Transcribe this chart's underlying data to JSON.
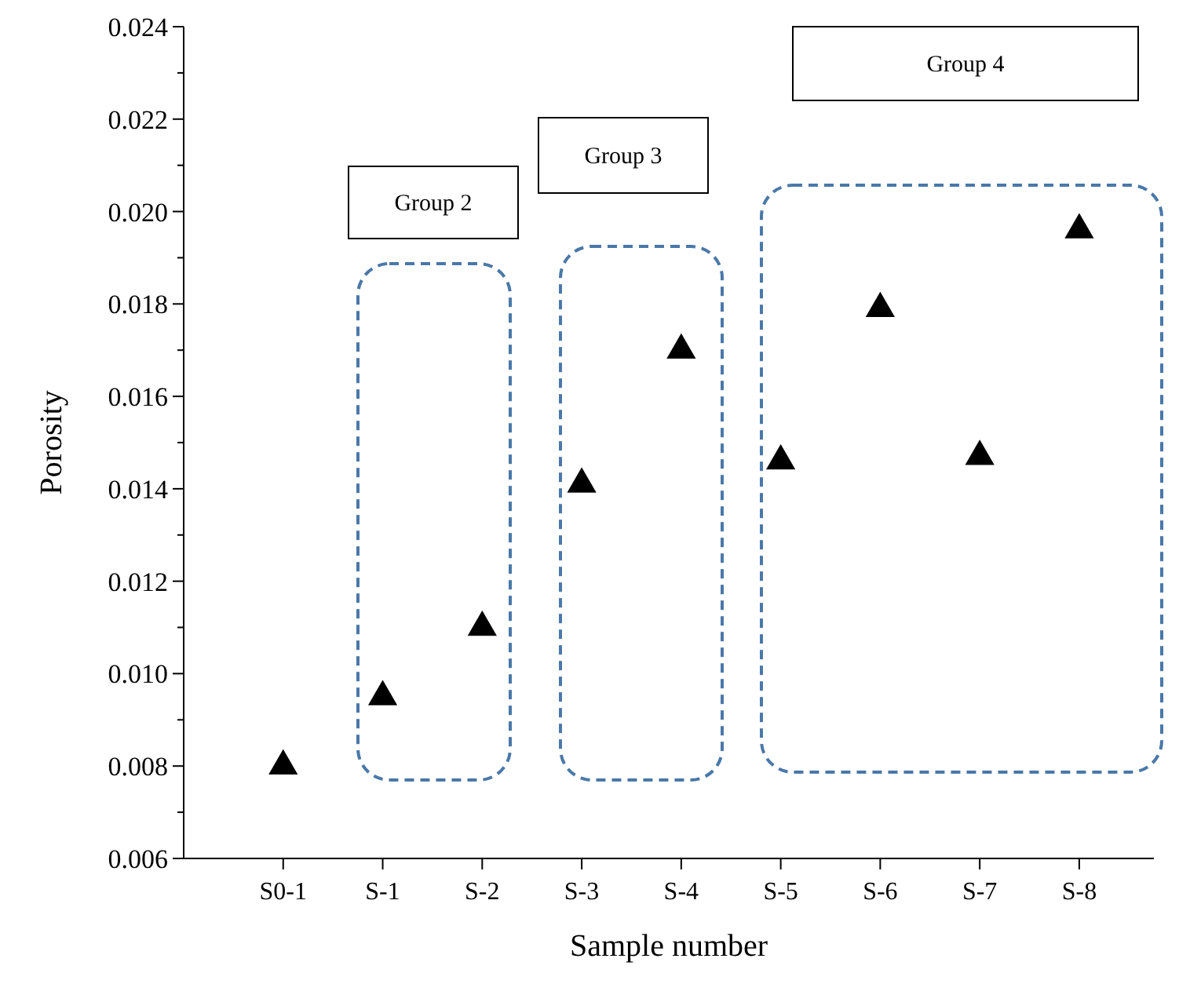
{
  "chart_data": {
    "type": "scatter",
    "xlabel": "Sample number",
    "ylabel": "Porosity",
    "categories": [
      "S0-1",
      "S-1",
      "S-2",
      "S-3",
      "S-4",
      "S-5",
      "S-6",
      "S-7",
      "S-8"
    ],
    "values": [
      0.008,
      0.0095,
      0.011,
      0.0141,
      0.017,
      0.0146,
      0.0179,
      0.0147,
      0.0196
    ],
    "color": "#000000",
    "marker": "triangle",
    "grid": false,
    "ylim": [
      0.006,
      0.024
    ],
    "yticks": [
      {
        "value": 0.006,
        "label": "0.006"
      },
      {
        "value": 0.007,
        "label": null
      },
      {
        "value": 0.008,
        "label": "0.008"
      },
      {
        "value": 0.009,
        "label": null
      },
      {
        "value": 0.01,
        "label": "0.010"
      },
      {
        "value": 0.011,
        "label": null
      },
      {
        "value": 0.012,
        "label": "0.012"
      },
      {
        "value": 0.013,
        "label": null
      },
      {
        "value": 0.014,
        "label": "0.014"
      },
      {
        "value": 0.015,
        "label": null
      },
      {
        "value": 0.016,
        "label": "0.016"
      },
      {
        "value": 0.017,
        "label": null
      },
      {
        "value": 0.018,
        "label": "0.018"
      },
      {
        "value": 0.019,
        "label": null
      },
      {
        "value": 0.02,
        "label": "0.020"
      },
      {
        "value": 0.021,
        "label": null
      },
      {
        "value": 0.022,
        "label": "0.022"
      },
      {
        "value": 0.023,
        "label": null
      },
      {
        "value": 0.024,
        "label": "0.024"
      }
    ],
    "annotations": [
      "Group 2",
      "Group 3",
      "Group 4"
    ]
  }
}
